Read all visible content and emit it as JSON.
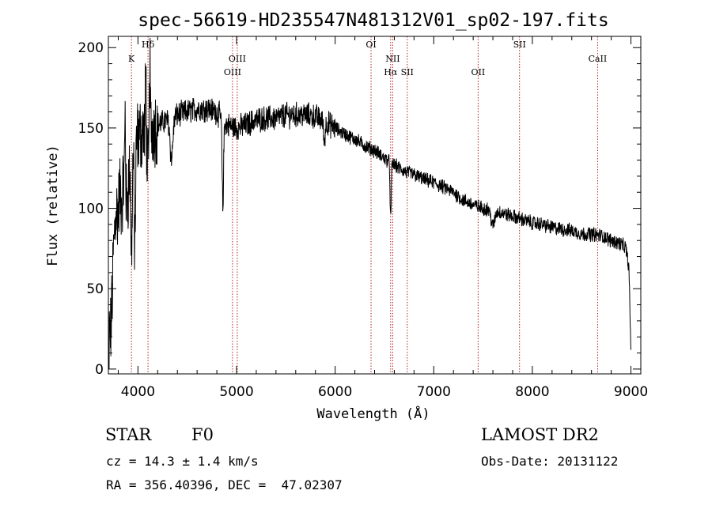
{
  "chart_data": {
    "type": "line",
    "title": "spec-56619-HD235547N481312V01_sp02-197.fits",
    "xlabel": "Wavelength (Å)",
    "ylabel": "Flux (relative)",
    "xlim": [
      3700,
      9100
    ],
    "ylim": [
      -3,
      207
    ],
    "xticks": [
      4000,
      5000,
      6000,
      7000,
      8000,
      9000
    ],
    "yticks": [
      0,
      50,
      100,
      150,
      200
    ],
    "grid": false,
    "line_color": "#000000",
    "marker_color": "#b22222",
    "lines": [
      {
        "name": "K",
        "x": 3934,
        "row": 1
      },
      {
        "name": "Hδ",
        "x": 4102,
        "row": 0
      },
      {
        "name": "OIII",
        "x": 4959,
        "row": 2
      },
      {
        "name": "OIII",
        "x": 5007,
        "row": 1
      },
      {
        "name": "OI",
        "x": 6364,
        "row": 0
      },
      {
        "name": "NII",
        "x": 6584,
        "row": 1
      },
      {
        "name": "Hα",
        "x": 6563,
        "row": 2
      },
      {
        "name": "SII",
        "x": 6731,
        "row": 2
      },
      {
        "name": "OII",
        "x": 7450,
        "row": 2
      },
      {
        "name": "SII",
        "x": 7870,
        "row": 0
      },
      {
        "name": "CaII",
        "x": 8662,
        "row": 1
      }
    ],
    "continuum": [
      [
        3700,
        5
      ],
      [
        3710,
        70
      ],
      [
        3750,
        100
      ],
      [
        3800,
        110
      ],
      [
        3850,
        120
      ],
      [
        3900,
        125
      ],
      [
        3950,
        135
      ],
      [
        4000,
        145
      ],
      [
        4100,
        150
      ],
      [
        4200,
        152
      ],
      [
        4300,
        155
      ],
      [
        4400,
        158
      ],
      [
        4500,
        160
      ],
      [
        4600,
        162
      ],
      [
        4700,
        162
      ],
      [
        4800,
        160
      ],
      [
        4900,
        152
      ],
      [
        5000,
        150
      ],
      [
        5100,
        152
      ],
      [
        5200,
        155
      ],
      [
        5300,
        156
      ],
      [
        5400,
        156
      ],
      [
        5500,
        158
      ],
      [
        5600,
        158
      ],
      [
        5700,
        158
      ],
      [
        5800,
        157
      ],
      [
        5900,
        154
      ],
      [
        6000,
        150
      ],
      [
        6100,
        146
      ],
      [
        6200,
        143
      ],
      [
        6300,
        139
      ],
      [
        6400,
        136
      ],
      [
        6500,
        131
      ],
      [
        6600,
        127
      ],
      [
        6700,
        123
      ],
      [
        6800,
        121
      ],
      [
        6900,
        118
      ],
      [
        7000,
        116
      ],
      [
        7100,
        113
      ],
      [
        7200,
        110
      ],
      [
        7300,
        105
      ],
      [
        7400,
        102
      ],
      [
        7500,
        100
      ],
      [
        7600,
        99
      ],
      [
        7700,
        97
      ],
      [
        7800,
        95
      ],
      [
        7900,
        93
      ],
      [
        8000,
        91
      ],
      [
        8100,
        90
      ],
      [
        8200,
        88
      ],
      [
        8300,
        87
      ],
      [
        8400,
        86
      ],
      [
        8500,
        84
      ],
      [
        8600,
        84
      ],
      [
        8700,
        83
      ],
      [
        8800,
        80
      ],
      [
        8900,
        78
      ],
      [
        8950,
        75
      ],
      [
        8980,
        62
      ],
      [
        9000,
        10
      ]
    ],
    "absorption": [
      [
        3720,
        30,
        38
      ],
      [
        3735,
        40,
        20
      ],
      [
        3798,
        12,
        10
      ],
      [
        3835,
        15,
        12
      ],
      [
        3889,
        18,
        22
      ],
      [
        3934,
        10,
        60
      ],
      [
        3968,
        10,
        60
      ],
      [
        4102,
        18,
        25
      ],
      [
        4340,
        20,
        25
      ],
      [
        4861,
        10,
        55
      ],
      [
        5890,
        12,
        12
      ],
      [
        6563,
        8,
        35
      ],
      [
        7600,
        25,
        10
      ]
    ],
    "spikes": [
      [
        3870,
        45
      ],
      [
        4080,
        42
      ],
      [
        4120,
        50
      ]
    ],
    "noise_segments": [
      [
        3700,
        4200,
        22
      ],
      [
        4200,
        6000,
        7
      ],
      [
        6000,
        9000,
        4
      ]
    ]
  },
  "info": {
    "obj_class": "STAR",
    "obj_subclass": "F0",
    "survey": "LAMOST DR2",
    "cz": "cz = 14.3 ± 1.4 km/s",
    "obs_date": "Obs-Date: 20131122",
    "radec": "RA = 356.40396, DEC =  47.02307"
  }
}
